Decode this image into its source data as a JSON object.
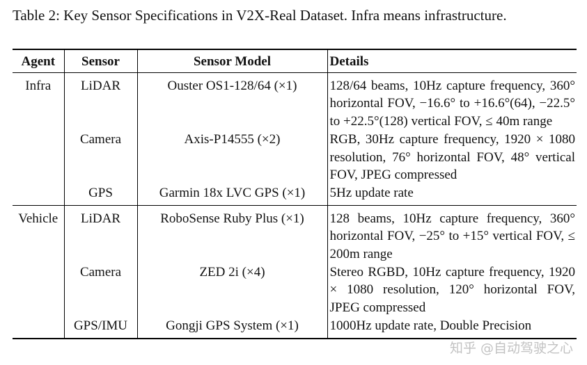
{
  "caption": "Table 2: Key Sensor Specifications in V2X-Real Dataset. Infra means infrastructure.",
  "table": {
    "columns": [
      "Agent",
      "Sensor",
      "Sensor Model",
      "Details"
    ],
    "groups": [
      {
        "agent": "Infra",
        "rows": [
          {
            "sensor": "LiDAR",
            "model": "Ouster OS1-128/64 (×1)",
            "details": "128/64 beams, 10Hz capture frequency, 360° horizontal FOV, −16.6° to +16.6°(64), −22.5° to +22.5°(128) vertical FOV, ≤ 40m range"
          },
          {
            "sensor": "Camera",
            "model": "Axis-P14555 (×2)",
            "details": "RGB, 30Hz capture frequency, 1920 × 1080 resolution, 76° horizontal FOV, 48° vertical FOV, JPEG compressed"
          },
          {
            "sensor": "GPS",
            "model": "Garmin 18x LVC GPS (×1)",
            "details": "5Hz update rate"
          }
        ]
      },
      {
        "agent": "Vehicle",
        "rows": [
          {
            "sensor": "LiDAR",
            "model": "RoboSense Ruby Plus (×1)",
            "details": "128 beams, 10Hz capture frequency, 360° horizontal FOV, −25° to +15° vertical FOV, ≤ 200m range"
          },
          {
            "sensor": "Camera",
            "model": "ZED 2i (×4)",
            "details": "Stereo RGBD, 10Hz capture frequency, 1920 × 1080 resolution, 120° horizontal FOV, JPEG compressed"
          },
          {
            "sensor": "GPS/IMU",
            "model": "Gongji GPS System (×1)",
            "details": "1000Hz update rate, Double Precision"
          }
        ]
      }
    ]
  },
  "watermark": "知乎 @自动驾驶之心"
}
